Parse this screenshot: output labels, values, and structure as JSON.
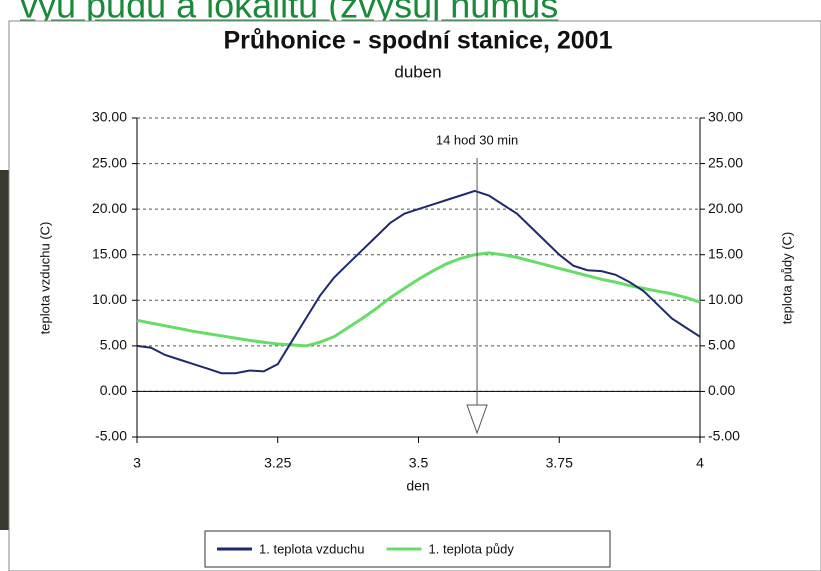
{
  "header": {
    "text": "vyu půdu a lokalitu (zvyšuj humus"
  },
  "chart_data": {
    "type": "line",
    "title": "Průhonice - spodní stanice, 2001",
    "subtitle": "duben",
    "x_label": "den",
    "y_label": "teplota vzduchu (C)",
    "y2_label": "teplota půdy (C)",
    "annotation": {
      "text": "14 hod 30 min",
      "x": 3.604
    },
    "x": [
      3.0,
      3.025,
      3.05,
      3.075,
      3.1,
      3.125,
      3.15,
      3.175,
      3.2,
      3.225,
      3.25,
      3.275,
      3.3,
      3.325,
      3.35,
      3.375,
      3.4,
      3.425,
      3.45,
      3.475,
      3.5,
      3.525,
      3.55,
      3.575,
      3.6,
      3.625,
      3.65,
      3.675,
      3.7,
      3.725,
      3.75,
      3.775,
      3.8,
      3.825,
      3.85,
      3.875,
      3.9,
      3.925,
      3.95,
      3.975,
      4.0
    ],
    "series": [
      {
        "name": "1. teplota vzduchu",
        "color": "#1f2a6e",
        "values": [
          5.0,
          4.8,
          4.0,
          3.5,
          3.0,
          2.5,
          2.0,
          2.0,
          2.3,
          2.2,
          3.0,
          5.5,
          8.0,
          10.5,
          12.5,
          14.0,
          15.5,
          17.0,
          18.5,
          19.5,
          20.0,
          20.5,
          21.0,
          21.5,
          22.0,
          21.5,
          20.5,
          19.5,
          18.0,
          16.5,
          15.0,
          13.8,
          13.3,
          13.2,
          12.8,
          12.0,
          11.0,
          9.5,
          8.0,
          7.0,
          6.0
        ]
      },
      {
        "name": "1. teplota půdy",
        "color": "#66dd66",
        "axis": "y2",
        "values": [
          7.8,
          7.5,
          7.2,
          6.9,
          6.6,
          6.35,
          6.1,
          5.85,
          5.6,
          5.4,
          5.2,
          5.1,
          5.0,
          5.4,
          6.0,
          7.0,
          8.0,
          9.1,
          10.3,
          11.3,
          12.3,
          13.2,
          14.0,
          14.6,
          15.0,
          15.2,
          15.0,
          14.7,
          14.3,
          13.9,
          13.5,
          13.1,
          12.7,
          12.3,
          12.0,
          11.6,
          11.3,
          11.0,
          10.7,
          10.3,
          9.8
        ]
      }
    ],
    "xlim": [
      3,
      4
    ],
    "xticks": [
      3,
      3.25,
      3.5,
      3.75,
      4
    ],
    "ylim": [
      -5,
      30
    ],
    "yticks": [
      {
        "value": -5,
        "label": "-5.00"
      },
      {
        "value": 0,
        "label": "0.00"
      },
      {
        "value": 5,
        "label": "5.00"
      },
      {
        "value": 10,
        "label": "10.00"
      },
      {
        "value": 15,
        "label": "15.00"
      },
      {
        "value": 20,
        "label": "20.00"
      },
      {
        "value": 25,
        "label": "25.00"
      },
      {
        "value": 30,
        "label": "30.00"
      }
    ],
    "y2lim": [
      -5,
      30
    ],
    "y2ticks": [
      {
        "value": -5,
        "label": "-5.00"
      },
      {
        "value": 0,
        "label": "0.00"
      },
      {
        "value": 5,
        "label": "5.00"
      },
      {
        "value": 10,
        "label": "10.00"
      },
      {
        "value": 15,
        "label": "15.00"
      },
      {
        "value": 20,
        "label": "20.00"
      },
      {
        "value": 25,
        "label": "25.00"
      },
      {
        "value": 30,
        "label": "30.00"
      }
    ],
    "grid": true,
    "legend": "bottom"
  }
}
